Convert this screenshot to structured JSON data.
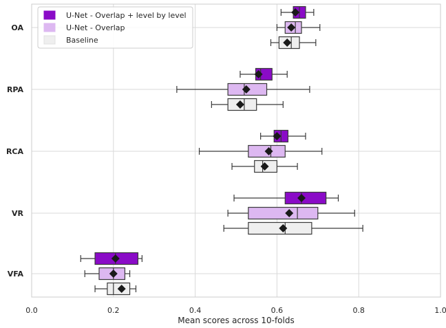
{
  "chart_data": {
    "type": "boxplot",
    "orientation": "horizontal",
    "xlabel": "Mean scores across 10-folds",
    "ylabel": "",
    "xlim": [
      0.0,
      1.0
    ],
    "xticks": [
      "0.0",
      "0.2",
      "0.4",
      "0.6",
      "0.8",
      "1.0"
    ],
    "grid": true,
    "legend_position": "top-left",
    "categories": [
      "OA",
      "RPA",
      "RCA",
      "VR",
      "VFA"
    ],
    "series": [
      {
        "name": "U-Net - Overlap + level by level",
        "color": "#8A0BC7",
        "boxes": [
          {
            "whisker_low": 0.61,
            "q1": 0.64,
            "median": 0.655,
            "q3": 0.67,
            "whisker_high": 0.69,
            "mean": 0.645
          },
          {
            "whisker_low": 0.51,
            "q1": 0.548,
            "median": 0.56,
            "q3": 0.588,
            "whisker_high": 0.625,
            "mean": 0.555
          },
          {
            "whisker_low": 0.56,
            "q1": 0.593,
            "median": 0.61,
            "q3": 0.627,
            "whisker_high": 0.67,
            "mean": 0.6
          },
          {
            "whisker_low": 0.495,
            "q1": 0.62,
            "median": 0.66,
            "q3": 0.72,
            "whisker_high": 0.75,
            "mean": 0.66
          },
          {
            "whisker_low": 0.12,
            "q1": 0.155,
            "median": 0.205,
            "q3": 0.26,
            "whisker_high": 0.27,
            "mean": 0.205
          }
        ]
      },
      {
        "name": "U-Net - Overlap",
        "color": "#DDB8F1",
        "boxes": [
          {
            "whisker_low": 0.6,
            "q1": 0.62,
            "median": 0.645,
            "q3": 0.66,
            "whisker_high": 0.705,
            "mean": 0.635
          },
          {
            "whisker_low": 0.355,
            "q1": 0.48,
            "median": 0.52,
            "q3": 0.575,
            "whisker_high": 0.68,
            "mean": 0.525
          },
          {
            "whisker_low": 0.41,
            "q1": 0.53,
            "median": 0.585,
            "q3": 0.62,
            "whisker_high": 0.71,
            "mean": 0.58
          },
          {
            "whisker_low": 0.48,
            "q1": 0.53,
            "median": 0.65,
            "q3": 0.7,
            "whisker_high": 0.79,
            "mean": 0.63
          },
          {
            "whisker_low": 0.13,
            "q1": 0.165,
            "median": 0.2,
            "q3": 0.228,
            "whisker_high": 0.24,
            "mean": 0.2
          }
        ]
      },
      {
        "name": "Baseline",
        "color": "#EFEFEF",
        "boxes": [
          {
            "whisker_low": 0.585,
            "q1": 0.605,
            "median": 0.635,
            "q3": 0.655,
            "whisker_high": 0.695,
            "mean": 0.625
          },
          {
            "whisker_low": 0.44,
            "q1": 0.48,
            "median": 0.52,
            "q3": 0.55,
            "whisker_high": 0.615,
            "mean": 0.51
          },
          {
            "whisker_low": 0.49,
            "q1": 0.545,
            "median": 0.565,
            "q3": 0.6,
            "whisker_high": 0.65,
            "mean": 0.57
          },
          {
            "whisker_low": 0.47,
            "q1": 0.53,
            "median": 0.62,
            "q3": 0.685,
            "whisker_high": 0.81,
            "mean": 0.615
          },
          {
            "whisker_low": 0.155,
            "q1": 0.185,
            "median": 0.2,
            "q3": 0.24,
            "whisker_high": 0.255,
            "mean": 0.22
          }
        ]
      }
    ]
  }
}
